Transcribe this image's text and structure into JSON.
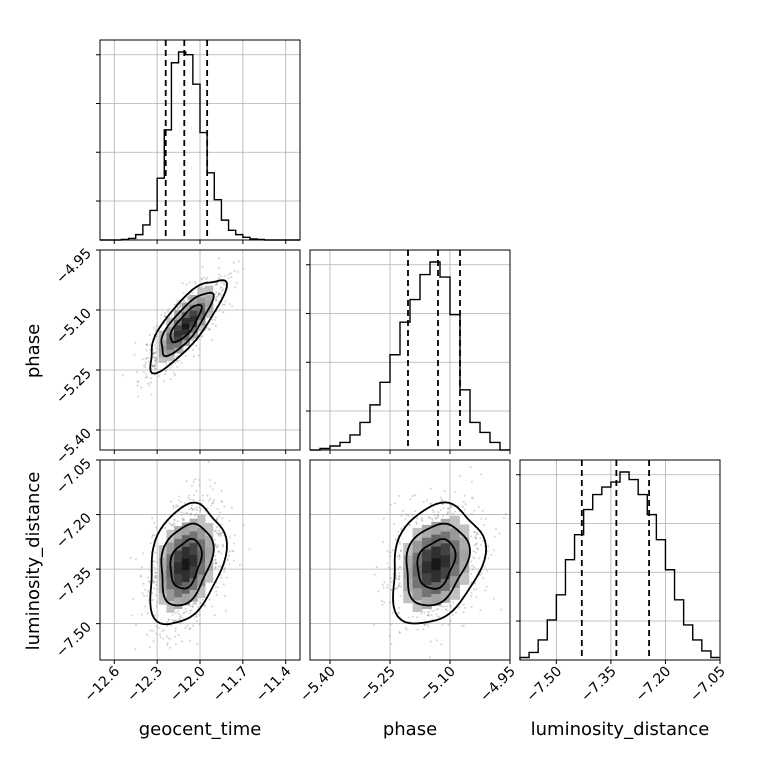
{
  "chart_data": {
    "type": "corner",
    "parameters": [
      {
        "name": "geocent_time",
        "xlabel": "geocent_time",
        "ylabel": "",
        "range": [
          -12.7,
          -11.3
        ],
        "ticks": [
          -12.6,
          -12.3,
          -12.0,
          -11.7,
          -11.4
        ],
        "tick_labels": [
          "−12.6",
          "−12.3",
          "−12.0",
          "−11.7",
          "−11.4"
        ],
        "quantiles": [
          -12.24,
          -12.11,
          -11.95
        ],
        "mean": -12.1,
        "sd": 0.12
      },
      {
        "name": "phase",
        "xlabel": "phase",
        "ylabel": "phase",
        "range": [
          -5.45,
          -4.95
        ],
        "ticks": [
          -5.4,
          -5.25,
          -5.1,
          -4.95
        ],
        "tick_labels": [
          "−5.40",
          "−5.25",
          "−5.10",
          "−4.95"
        ],
        "quantiles": [
          -5.205,
          -5.13,
          -5.075
        ],
        "mean": -5.135,
        "sd": 0.052
      },
      {
        "name": "luminosity_distance",
        "xlabel": "luminosity_distance",
        "ylabel": "luminosity_distance",
        "range": [
          -7.6,
          -7.05
        ],
        "ticks": [
          -7.5,
          -7.35,
          -7.2,
          -7.05
        ],
        "tick_labels": [
          "−7.50",
          "−7.35",
          "−7.20",
          "−7.05"
        ],
        "quantiles": [
          -7.43,
          -7.335,
          -7.245
        ],
        "mean": -7.335,
        "sd": 0.075
      }
    ],
    "histograms": [
      {
        "parameter": "geocent_time",
        "bins": [
          -12.7,
          -12.65,
          -12.6,
          -12.55,
          -12.5,
          -12.45,
          -12.4,
          -12.35,
          -12.3,
          -12.25,
          -12.2,
          -12.15,
          -12.1,
          -12.05,
          -12.0,
          -11.95,
          -11.9,
          -11.85,
          -11.8,
          -11.75,
          -11.7,
          -11.65,
          -11.6,
          -11.55,
          -11.5,
          -11.45,
          -11.4,
          -11.35,
          -11.3
        ],
        "counts": [
          0,
          0,
          0,
          1,
          3,
          10,
          28,
          55,
          115,
          205,
          330,
          350,
          345,
          290,
          200,
          125,
          75,
          37,
          18,
          10,
          5,
          2,
          1,
          0,
          0,
          0,
          0,
          0
        ]
      },
      {
        "parameter": "phase",
        "bins": [
          -5.45,
          -5.425,
          -5.4,
          -5.375,
          -5.35,
          -5.325,
          -5.3,
          -5.275,
          -5.25,
          -5.225,
          -5.2,
          -5.175,
          -5.15,
          -5.125,
          -5.1,
          -5.075,
          -5.05,
          -5.025,
          -5.0,
          -4.975,
          -4.95
        ],
        "counts": [
          0,
          3,
          8,
          15,
          30,
          55,
          90,
          135,
          190,
          255,
          300,
          350,
          375,
          345,
          270,
          120,
          55,
          35,
          15,
          0
        ]
      },
      {
        "parameter": "luminosity_distance",
        "bins": [
          -7.6,
          -7.575,
          -7.55,
          -7.525,
          -7.5,
          -7.475,
          -7.45,
          -7.425,
          -7.4,
          -7.375,
          -7.35,
          -7.325,
          -7.3,
          -7.275,
          -7.25,
          -7.225,
          -7.2,
          -7.175,
          -7.15,
          -7.125,
          -7.1,
          -7.075,
          -7.05
        ],
        "counts": [
          5,
          15,
          40,
          80,
          130,
          200,
          250,
          300,
          330,
          345,
          355,
          375,
          360,
          330,
          290,
          240,
          180,
          120,
          70,
          40,
          18,
          5
        ]
      }
    ],
    "pairs": [
      {
        "x": "geocent_time",
        "y": "phase",
        "correlation": 0.8
      },
      {
        "x": "geocent_time",
        "y": "luminosity_distance",
        "correlation": 0.3
      },
      {
        "x": "phase",
        "y": "luminosity_distance",
        "correlation": 0.25
      }
    ],
    "contour_levels": [
      0.5,
      0.865,
      0.989
    ],
    "grid": true,
    "colors": {
      "line": "#000000",
      "grid": "#b0b0b0",
      "points": "#808080"
    }
  }
}
